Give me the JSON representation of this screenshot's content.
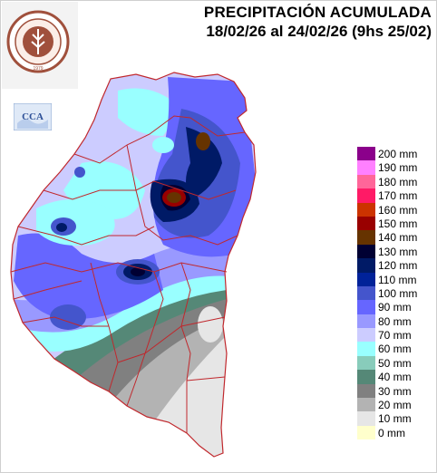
{
  "title": {
    "line1": "PRECIPITACIÓN ACUMULADA",
    "line2": "18/02/26 al 24/02/26 (9hs 25/02)"
  },
  "logo": {
    "name": "bolsa-de-cereales-seal-icon",
    "year": "1979",
    "text": "BOLSA DE CEREALES DE ENTRE RIOS"
  },
  "cca_badge": {
    "label": "CCA"
  },
  "colors": {
    "county_border": "#c0282d",
    "background": "#ffffff"
  },
  "legend": [
    {
      "label": "200 mm",
      "color": "#8b008b"
    },
    {
      "label": "190 mm",
      "color": "#ff80ff"
    },
    {
      "label": "180 mm",
      "color": "#ff6699"
    },
    {
      "label": "170 mm",
      "color": "#ff1a66"
    },
    {
      "label": "160 mm",
      "color": "#cc3300"
    },
    {
      "label": "150 mm",
      "color": "#990000"
    },
    {
      "label": "140 mm",
      "color": "#663300"
    },
    {
      "label": "130 mm",
      "color": "#000033"
    },
    {
      "label": "120 mm",
      "color": "#001a66"
    },
    {
      "label": "110 mm",
      "color": "#002299"
    },
    {
      "label": "100 mm",
      "color": "#4455cc"
    },
    {
      "label": "90 mm",
      "color": "#6666ff"
    },
    {
      "label": "80 mm",
      "color": "#9999ff"
    },
    {
      "label": "70 mm",
      "color": "#ccccff"
    },
    {
      "label": "60 mm",
      "color": "#99ffff"
    },
    {
      "label": "50 mm",
      "color": "#88ccbb"
    },
    {
      "label": "40 mm",
      "color": "#558877"
    },
    {
      "label": "30 mm",
      "color": "#808080"
    },
    {
      "label": "20 mm",
      "color": "#b3b3b3"
    },
    {
      "label": "10 mm",
      "color": "#e6e6e6"
    },
    {
      "label": "0 mm",
      "color": "#ffffcc"
    }
  ]
}
